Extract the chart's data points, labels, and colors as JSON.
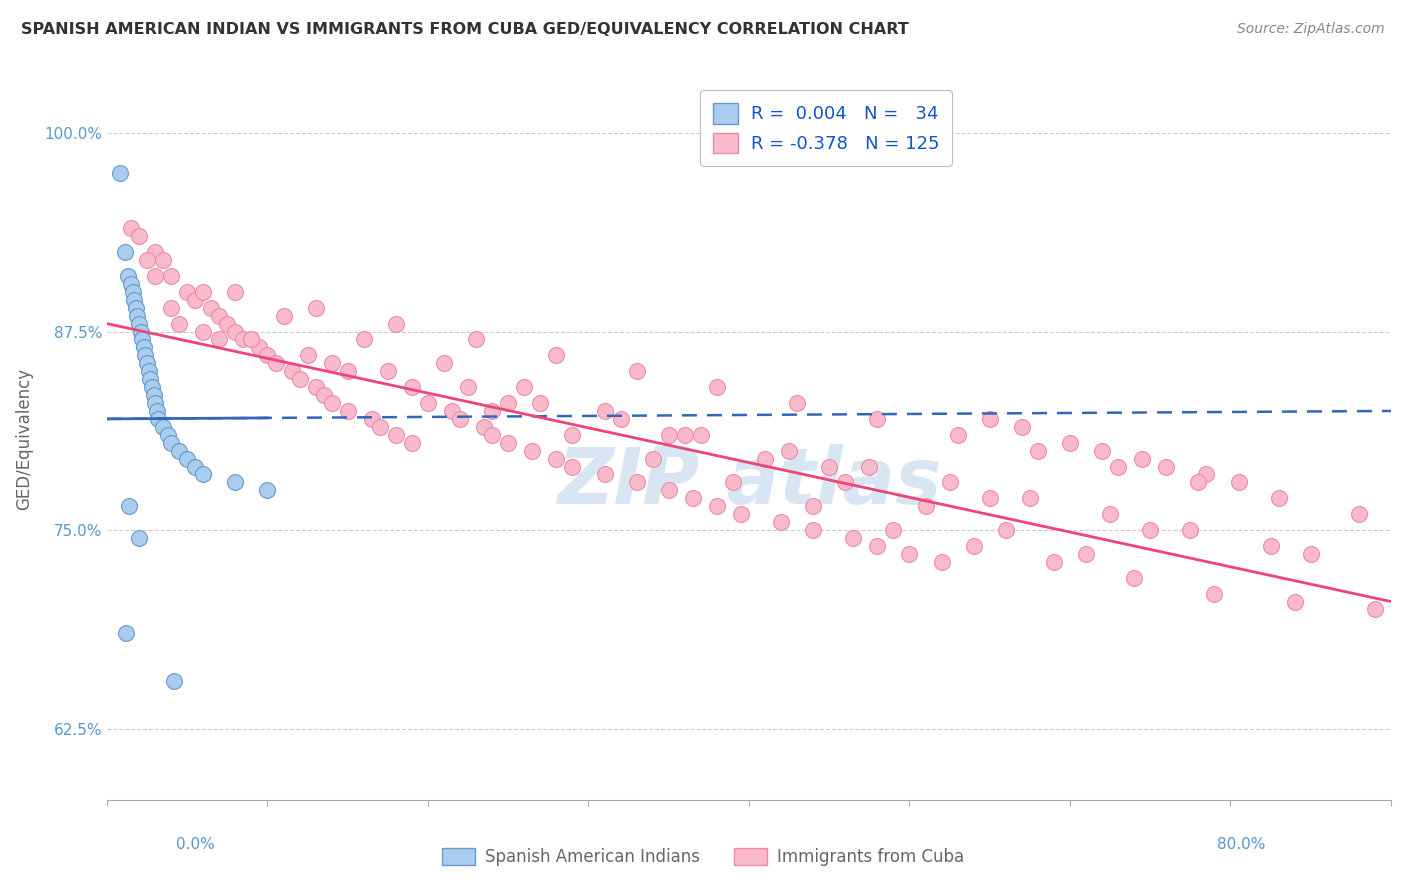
{
  "title": "SPANISH AMERICAN INDIAN VS IMMIGRANTS FROM CUBA GED/EQUIVALENCY CORRELATION CHART",
  "source": "Source: ZipAtlas.com",
  "ylabel": "GED/Equivalency",
  "xmin": 0.0,
  "xmax": 80.0,
  "ymin": 58.0,
  "ymax": 103.5,
  "blue_color": "#AACCEE",
  "pink_color": "#F9BBCC",
  "blue_edge": "#6699CC",
  "pink_edge": "#EE88AA",
  "blue_line_color": "#3366BB",
  "pink_line_color": "#EE4477",
  "legend_label1": "Spanish American Indians",
  "legend_label2": "Immigrants from Cuba",
  "watermark_color": "#C8DCF0",
  "background_color": "#FFFFFF",
  "grid_color": "#CCCCCC",
  "ytick_color": "#5599CC",
  "xtick_color": "#5599CC",
  "blue_scatter_x": [
    0.8,
    1.1,
    1.3,
    1.5,
    1.6,
    1.7,
    1.8,
    1.9,
    2.0,
    2.1,
    2.2,
    2.3,
    2.4,
    2.5,
    2.6,
    2.7,
    2.8,
    2.9,
    3.0,
    3.1,
    3.2,
    3.5,
    3.8,
    4.0,
    4.5,
    5.0,
    5.5,
    6.0,
    8.0,
    10.0,
    1.4,
    2.0,
    1.2,
    4.2
  ],
  "blue_scatter_y": [
    97.5,
    92.5,
    91.0,
    90.5,
    90.0,
    89.5,
    89.0,
    88.5,
    88.0,
    87.5,
    87.0,
    86.5,
    86.0,
    85.5,
    85.0,
    84.5,
    84.0,
    83.5,
    83.0,
    82.5,
    82.0,
    81.5,
    81.0,
    80.5,
    80.0,
    79.5,
    79.0,
    78.5,
    78.0,
    77.5,
    76.5,
    74.5,
    68.5,
    65.5
  ],
  "pink_scatter_x": [
    1.5,
    2.0,
    3.0,
    3.5,
    4.0,
    5.0,
    5.5,
    6.5,
    7.0,
    7.5,
    8.0,
    8.5,
    9.5,
    10.0,
    10.5,
    11.5,
    12.0,
    13.0,
    13.5,
    14.0,
    15.0,
    16.5,
    17.0,
    18.0,
    19.0,
    20.0,
    21.5,
    22.0,
    23.5,
    24.0,
    25.0,
    26.5,
    28.0,
    29.0,
    31.0,
    33.0,
    35.0,
    36.5,
    38.0,
    39.5,
    42.0,
    44.0,
    46.5,
    48.0,
    50.0,
    52.0,
    55.0,
    57.0,
    60.0,
    62.0,
    64.5,
    66.0,
    68.5,
    70.5,
    4.5,
    6.0,
    9.0,
    12.5,
    17.5,
    22.5,
    27.0,
    32.0,
    37.0,
    42.5,
    47.5,
    52.5,
    57.5,
    62.5,
    67.5,
    72.5,
    3.0,
    8.0,
    13.0,
    18.0,
    23.0,
    28.0,
    33.0,
    38.0,
    43.0,
    48.0,
    53.0,
    58.0,
    63.0,
    68.0,
    73.0,
    78.0,
    7.0,
    15.0,
    25.0,
    35.0,
    45.0,
    55.0,
    65.0,
    75.0,
    4.0,
    9.0,
    14.0,
    19.0,
    24.0,
    29.0,
    34.0,
    39.0,
    44.0,
    49.0,
    54.0,
    59.0,
    64.0,
    69.0,
    74.0,
    79.0,
    2.5,
    6.0,
    11.0,
    16.0,
    21.0,
    26.0,
    31.0,
    36.0,
    41.0,
    46.0,
    51.0,
    56.0,
    61.0
  ],
  "pink_scatter_y": [
    94.0,
    93.5,
    92.5,
    92.0,
    91.0,
    90.0,
    89.5,
    89.0,
    88.5,
    88.0,
    87.5,
    87.0,
    86.5,
    86.0,
    85.5,
    85.0,
    84.5,
    84.0,
    83.5,
    83.0,
    82.5,
    82.0,
    81.5,
    81.0,
    80.5,
    83.0,
    82.5,
    82.0,
    81.5,
    81.0,
    80.5,
    80.0,
    79.5,
    79.0,
    78.5,
    78.0,
    77.5,
    77.0,
    76.5,
    76.0,
    75.5,
    75.0,
    74.5,
    74.0,
    73.5,
    73.0,
    82.0,
    81.5,
    80.5,
    80.0,
    79.5,
    79.0,
    78.5,
    78.0,
    88.0,
    87.5,
    87.0,
    86.0,
    85.0,
    84.0,
    83.0,
    82.0,
    81.0,
    80.0,
    79.0,
    78.0,
    77.0,
    76.0,
    75.0,
    74.0,
    91.0,
    90.0,
    89.0,
    88.0,
    87.0,
    86.0,
    85.0,
    84.0,
    83.0,
    82.0,
    81.0,
    80.0,
    79.0,
    78.0,
    77.0,
    76.0,
    87.0,
    85.0,
    83.0,
    81.0,
    79.0,
    77.0,
    75.0,
    73.5,
    89.0,
    87.0,
    85.5,
    84.0,
    82.5,
    81.0,
    79.5,
    78.0,
    76.5,
    75.0,
    74.0,
    73.0,
    72.0,
    71.0,
    70.5,
    70.0,
    92.0,
    90.0,
    88.5,
    87.0,
    85.5,
    84.0,
    82.5,
    81.0,
    79.5,
    78.0,
    76.5,
    75.0,
    73.5
  ],
  "blue_line_x0": 0.0,
  "blue_line_x1": 80.0,
  "blue_line_y0": 82.0,
  "blue_line_y1": 82.5,
  "pink_line_x0": 0.0,
  "pink_line_x1": 80.0,
  "pink_line_y0": 88.0,
  "pink_line_y1": 70.5
}
